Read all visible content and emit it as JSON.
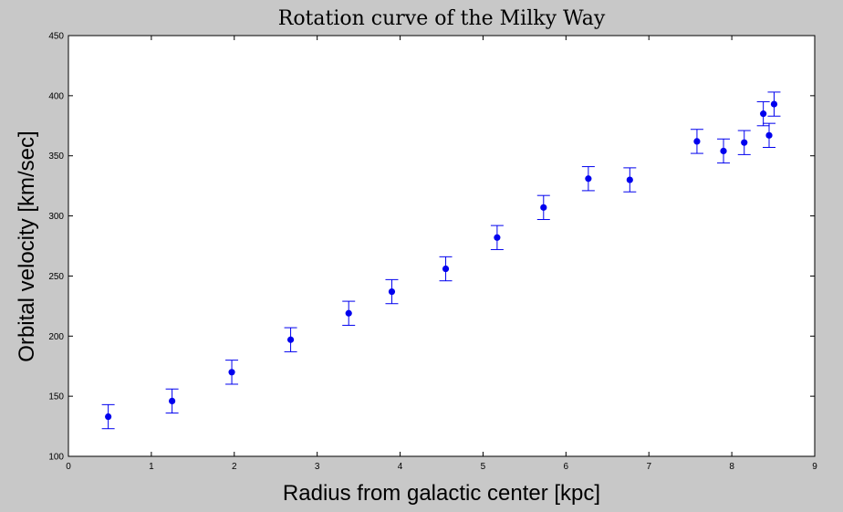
{
  "chart_data": {
    "type": "scatter",
    "title": "Rotation curve of the Milky Way",
    "xlabel": "Radius from galactic center [kpc]",
    "ylabel": "Orbital velocity [km/sec]",
    "xlim": [
      0,
      9
    ],
    "ylim": [
      100,
      450
    ],
    "xticks": [
      0,
      1,
      2,
      3,
      4,
      5,
      6,
      7,
      8,
      9
    ],
    "yticks": [
      100,
      150,
      200,
      250,
      300,
      350,
      400,
      450
    ],
    "grid": false,
    "legend": "none",
    "marker_color": "#0000ee",
    "error_bar": 10,
    "points": [
      {
        "x": 0.48,
        "y": 133
      },
      {
        "x": 1.25,
        "y": 146
      },
      {
        "x": 1.97,
        "y": 170
      },
      {
        "x": 2.68,
        "y": 197
      },
      {
        "x": 3.38,
        "y": 219
      },
      {
        "x": 3.9,
        "y": 237
      },
      {
        "x": 4.55,
        "y": 256
      },
      {
        "x": 5.17,
        "y": 282
      },
      {
        "x": 5.73,
        "y": 307
      },
      {
        "x": 6.27,
        "y": 331
      },
      {
        "x": 6.77,
        "y": 330
      },
      {
        "x": 7.58,
        "y": 362
      },
      {
        "x": 7.9,
        "y": 354
      },
      {
        "x": 8.15,
        "y": 361
      },
      {
        "x": 8.38,
        "y": 385
      },
      {
        "x": 8.45,
        "y": 367
      },
      {
        "x": 8.51,
        "y": 393
      }
    ]
  }
}
